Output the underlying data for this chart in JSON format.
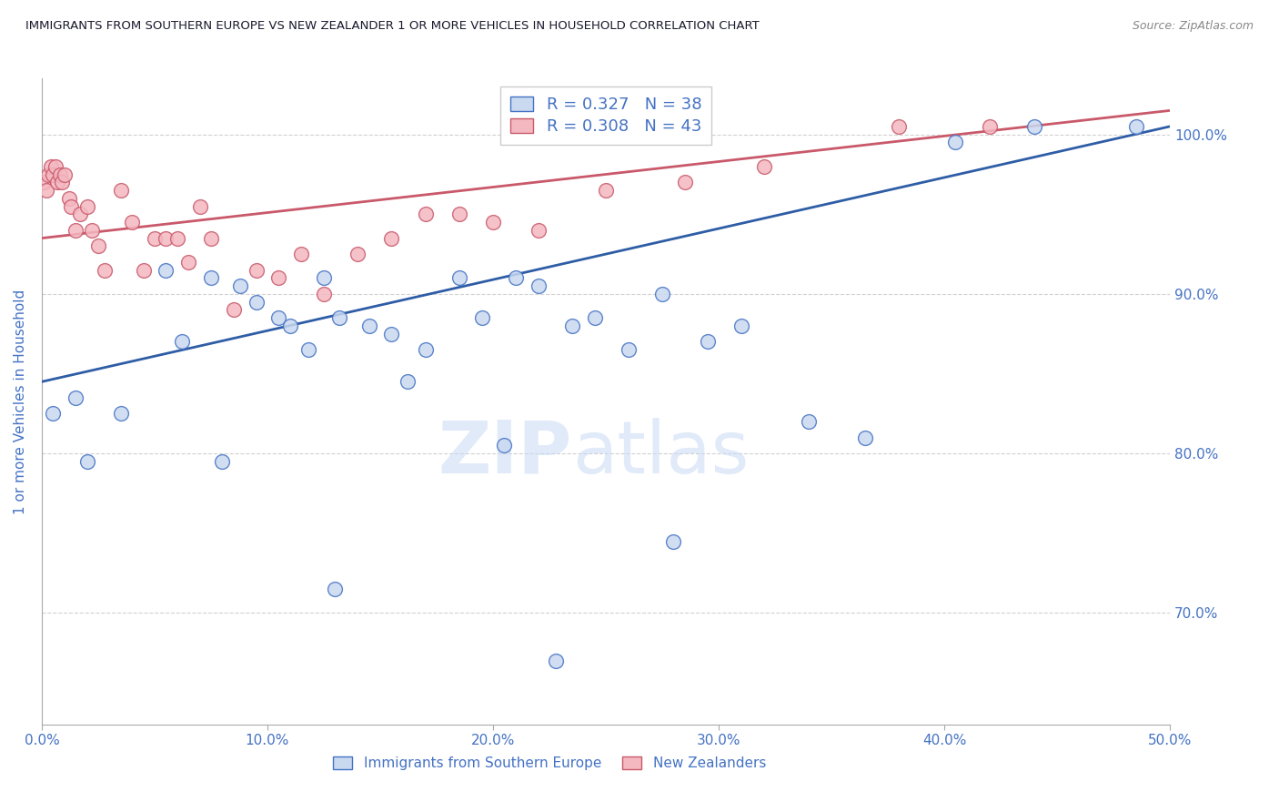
{
  "title": "IMMIGRANTS FROM SOUTHERN EUROPE VS NEW ZEALANDER 1 OR MORE VEHICLES IN HOUSEHOLD CORRELATION CHART",
  "source": "Source: ZipAtlas.com",
  "ylabel": "1 or more Vehicles in Household",
  "xlim": [
    0.0,
    50.0
  ],
  "ylim": [
    63.0,
    103.5
  ],
  "legend_blue_label": "R = 0.327   N = 38",
  "legend_pink_label": "R = 0.308   N = 43",
  "watermark": "ZIPatlas",
  "blue_dot_fill": "#c9d9f0",
  "blue_dot_edge": "#4472c4",
  "pink_dot_fill": "#f4b8c1",
  "pink_dot_edge": "#c9596a",
  "blue_line_color": "#2e5da6",
  "pink_line_color": "#c9596a",
  "title_color": "#1a1a2e",
  "source_color": "#888888",
  "ylabel_color": "#4472c4",
  "ytick_color": "#4472c4",
  "xtick_color": "#4472c4",
  "grid_color": "#cccccc",
  "background_color": "#ffffff",
  "legend_text_color": "#4472c4",
  "blue_points_x": [
    0.5,
    1.5,
    2.0,
    3.5,
    5.5,
    6.2,
    7.5,
    8.8,
    9.5,
    10.5,
    11.0,
    11.8,
    12.5,
    13.2,
    14.5,
    15.5,
    16.2,
    17.0,
    18.5,
    19.5,
    21.0,
    22.0,
    23.5,
    24.5,
    26.0,
    27.5,
    29.5,
    31.0,
    34.0,
    36.5,
    40.5,
    44.0,
    48.5,
    8.0,
    13.0,
    20.5,
    22.8,
    28.0
  ],
  "blue_points_y": [
    82.5,
    83.5,
    79.5,
    82.5,
    91.5,
    87.0,
    91.0,
    90.5,
    89.5,
    88.5,
    88.0,
    86.5,
    91.0,
    88.5,
    88.0,
    87.5,
    84.5,
    86.5,
    91.0,
    88.5,
    91.0,
    90.5,
    88.0,
    88.5,
    86.5,
    90.0,
    87.0,
    88.0,
    82.0,
    81.0,
    99.5,
    100.5,
    100.5,
    79.5,
    71.5,
    80.5,
    67.0,
    74.5
  ],
  "pink_points_x": [
    0.1,
    0.2,
    0.3,
    0.4,
    0.5,
    0.6,
    0.7,
    0.8,
    0.9,
    1.0,
    1.2,
    1.3,
    1.5,
    1.7,
    2.0,
    2.2,
    2.5,
    2.8,
    3.5,
    4.0,
    4.5,
    5.0,
    5.5,
    6.0,
    6.5,
    7.0,
    7.5,
    8.5,
    9.5,
    10.5,
    11.5,
    12.5,
    14.0,
    15.5,
    17.0,
    18.5,
    20.0,
    22.0,
    25.0,
    28.5,
    32.0,
    38.0,
    42.0
  ],
  "pink_points_y": [
    97.0,
    96.5,
    97.5,
    98.0,
    97.5,
    98.0,
    97.0,
    97.5,
    97.0,
    97.5,
    96.0,
    95.5,
    94.0,
    95.0,
    95.5,
    94.0,
    93.0,
    91.5,
    96.5,
    94.5,
    91.5,
    93.5,
    93.5,
    93.5,
    92.0,
    95.5,
    93.5,
    89.0,
    91.5,
    91.0,
    92.5,
    90.0,
    92.5,
    93.5,
    95.0,
    95.0,
    94.5,
    94.0,
    96.5,
    97.0,
    98.0,
    100.5,
    100.5
  ],
  "blue_trendline_x": [
    0.0,
    50.0
  ],
  "blue_trendline_y": [
    84.5,
    100.5
  ],
  "pink_trendline_x": [
    0.0,
    50.0
  ],
  "pink_trendline_y": [
    93.5,
    101.5
  ],
  "yticks": [
    70.0,
    80.0,
    90.0,
    100.0
  ],
  "ytick_labels": [
    "70.0%",
    "80.0%",
    "90.0%",
    "100.0%"
  ],
  "xticks": [
    0.0,
    10.0,
    20.0,
    30.0,
    40.0,
    50.0
  ],
  "xtick_labels": [
    "0.0%",
    "10.0%",
    "20.0%",
    "30.0%",
    "40.0%",
    "50.0%"
  ],
  "bottom_legend_labels": [
    "Immigrants from Southern Europe",
    "New Zealanders"
  ]
}
